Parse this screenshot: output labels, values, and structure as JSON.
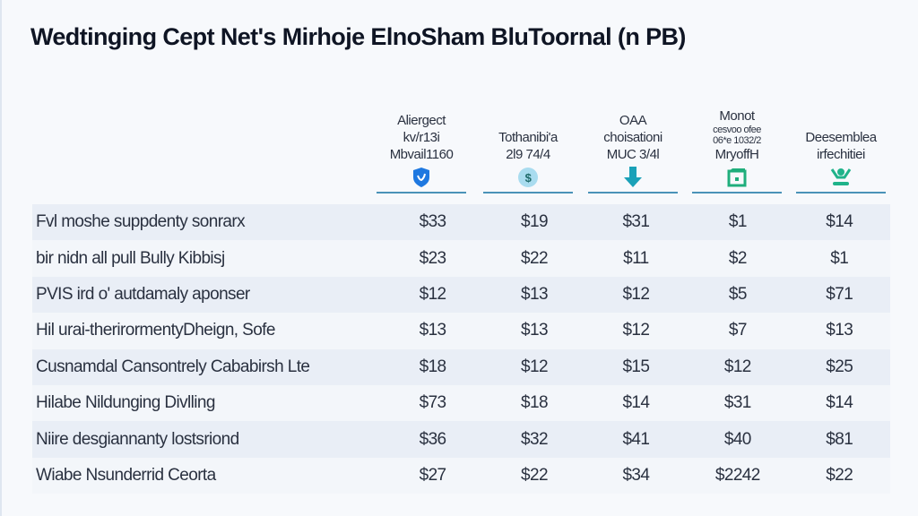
{
  "title": "Wedtinging Cept Net's Mirhoje ElnoSham BluToornal (n PB)",
  "columns": [
    {
      "lines": [
        "Aliergect",
        "kv/r13i",
        "Mbvail1160"
      ],
      "icon": "shield-icon",
      "color": "#1e78e0"
    },
    {
      "lines": [
        "Tothanibi'a",
        "2l9 74/4"
      ],
      "icon": "dollar-coin-icon",
      "color": "#a9dcef"
    },
    {
      "lines": [
        "OAA",
        "choisationi",
        "MUC 3/4l"
      ],
      "icon": "download-arrow-icon",
      "color": "#1aa1b8"
    },
    {
      "lines": [
        "Monot",
        "cesvoo ofee",
        "06*e 1032/2",
        "MryoffH"
      ],
      "icon": "building-icon",
      "color": "#1fae7c"
    },
    {
      "lines": [
        "Deesemblea",
        "irfechitiei"
      ],
      "icon": "person-icon",
      "color": "#1fb38a"
    }
  ],
  "rows": [
    {
      "name": "Fvl moshe suppdenty sonrarx",
      "values": [
        "$33",
        "$19",
        "$31",
        "$1",
        "$14"
      ]
    },
    {
      "name": "bir nidn all pull Bully Kibbisj",
      "values": [
        "$23",
        "$22",
        "$11",
        "$2",
        "$1"
      ]
    },
    {
      "name": "PVIS ird o' autdamaly aponser",
      "values": [
        "$12",
        "$13",
        "$12",
        "$5",
        "$71"
      ]
    },
    {
      "name": "Hil urai-therirormentyDheign, Sofe",
      "values": [
        "$13",
        "$13",
        "$12",
        "$7",
        "$13"
      ]
    },
    {
      "name": "Cusnamdal Cansontrely Cababirsh Lte",
      "values": [
        "$18",
        "$12",
        "$15",
        "$12",
        "$25"
      ]
    },
    {
      "name": "Hilabe Nildunging Divlling",
      "values": [
        "$73",
        "$18",
        "$14",
        "$31",
        "$14"
      ]
    },
    {
      "name": "Niire desgiannanty lostsriond",
      "values": [
        "$36",
        "$32",
        "$41",
        "$40",
        "$81"
      ]
    },
    {
      "name": "Wiabe Nsunderrid Ceorta",
      "values": [
        "$27",
        "$22",
        "$34",
        "$2242",
        "$22"
      ]
    }
  ]
}
